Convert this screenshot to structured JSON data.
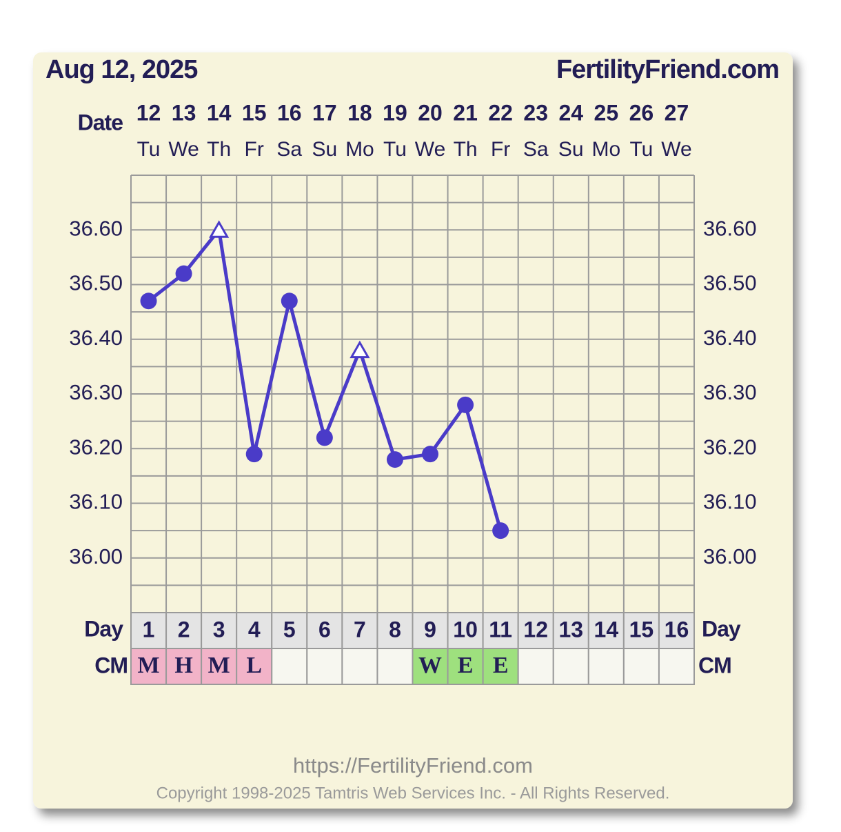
{
  "chart_data": {
    "type": "line",
    "title": "Aug 12, 2025",
    "site": "FertilityFriend.com",
    "date_label": "Date",
    "day_label": "Day",
    "dates": [
      12,
      13,
      14,
      15,
      16,
      17,
      18,
      19,
      20,
      21,
      22,
      23,
      24,
      25,
      26,
      27
    ],
    "weekdays": [
      "Tu",
      "We",
      "Th",
      "Fr",
      "Sa",
      "Su",
      "Mo",
      "Tu",
      "We",
      "Th",
      "Fr",
      "Sa",
      "Su",
      "Mo",
      "Tu",
      "We"
    ],
    "categories": [
      1,
      2,
      3,
      4,
      5,
      6,
      7,
      8,
      9,
      10,
      11,
      12,
      13,
      14,
      15,
      16
    ],
    "series": [
      {
        "color": "#4a3bc8",
        "values": [
          36.47,
          36.52,
          36.6,
          36.19,
          36.47,
          36.22,
          36.38,
          36.18,
          36.19,
          36.28,
          36.05,
          null,
          null,
          null,
          null,
          null
        ],
        "markers": [
          "circle",
          "circle",
          "triangle",
          "circle",
          "circle",
          "circle",
          "triangle",
          "circle",
          "circle",
          "circle",
          "circle",
          null,
          null,
          null,
          null,
          null
        ]
      }
    ],
    "ylim": [
      35.9,
      36.7
    ],
    "yticks": [
      {
        "value": 36.0,
        "label": "36.00"
      },
      {
        "value": 36.1,
        "label": "36.10"
      },
      {
        "value": 36.2,
        "label": "36.20"
      },
      {
        "value": 36.3,
        "label": "36.30"
      },
      {
        "value": 36.4,
        "label": "36.40"
      },
      {
        "value": 36.5,
        "label": "36.50"
      },
      {
        "value": 36.6,
        "label": "36.60"
      }
    ],
    "ygrid": [
      35.9,
      35.95,
      36.0,
      36.05,
      36.1,
      36.15,
      36.2,
      36.25,
      36.3,
      36.35,
      36.4,
      36.45,
      36.5,
      36.55,
      36.6,
      36.65,
      36.7
    ],
    "cm": {
      "label": "CM",
      "values": [
        "M",
        "H",
        "M",
        "L",
        null,
        null,
        null,
        null,
        "W",
        "E",
        "E",
        null,
        null,
        null,
        null,
        null
      ],
      "colors": [
        "#f2b3c8",
        "#f2b3c8",
        "#f2b3c8",
        "#f2b3c8",
        null,
        null,
        null,
        null,
        "#9ee07e",
        "#9ee07e",
        "#9ee07e",
        null,
        null,
        null,
        null,
        null
      ]
    },
    "footer_url": "https://FertilityFriend.com",
    "copyright": "Copyright 1998-2025 Tamtris Web Services Inc. - All Rights Reserved."
  }
}
